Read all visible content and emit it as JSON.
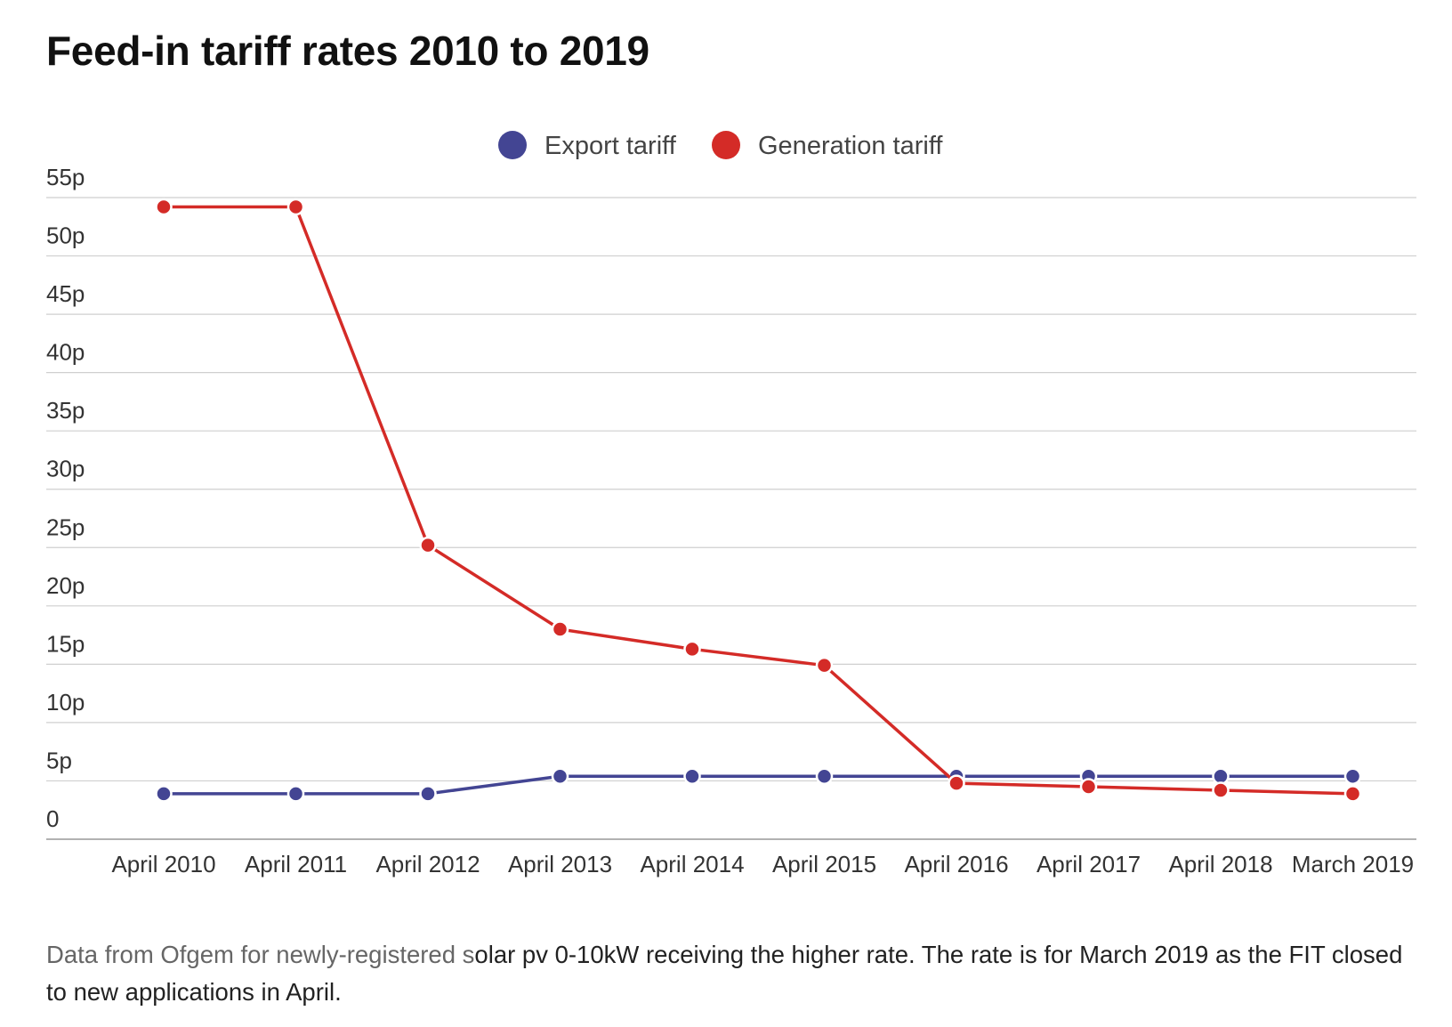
{
  "caption": {
    "muted_part": "Data from Ofgem for newly-registered s",
    "main_part": "olar pv 0-10kW receiving the higher rate. The rate is for March 2019 as the FIT closed to new applications in April."
  },
  "colors": {
    "export": "#434593",
    "generation": "#d42b27",
    "grid": "#cfcfcf",
    "axis": "#999999"
  },
  "chart_data": {
    "type": "line",
    "title": "Feed-in tariff rates 2010 to 2019",
    "xlabel": "",
    "ylabel": "",
    "categories": [
      "April 2010",
      "April 2011",
      "April 2012",
      "April 2013",
      "April 2014",
      "April 2015",
      "April 2016",
      "April 2017",
      "April 2018",
      "March 2019"
    ],
    "series": [
      {
        "name": "Export tariff",
        "color": "#434593",
        "values": [
          3.9,
          3.9,
          3.9,
          5.4,
          5.4,
          5.4,
          5.4,
          5.4,
          5.4,
          5.4
        ]
      },
      {
        "name": "Generation tariff",
        "color": "#d42b27",
        "values": [
          54.2,
          54.2,
          25.2,
          18.0,
          16.3,
          14.9,
          4.8,
          4.5,
          4.2,
          3.9
        ]
      }
    ],
    "ylim": [
      0,
      55
    ],
    "yticks": [
      0,
      5,
      10,
      15,
      20,
      25,
      30,
      35,
      40,
      45,
      50,
      55
    ],
    "ytick_labels": [
      "0",
      "5p",
      "10p",
      "15p",
      "20p",
      "25p",
      "30p",
      "35p",
      "40p",
      "45p",
      "50p",
      "55p"
    ],
    "grid": true,
    "legend_position": "top-center"
  }
}
